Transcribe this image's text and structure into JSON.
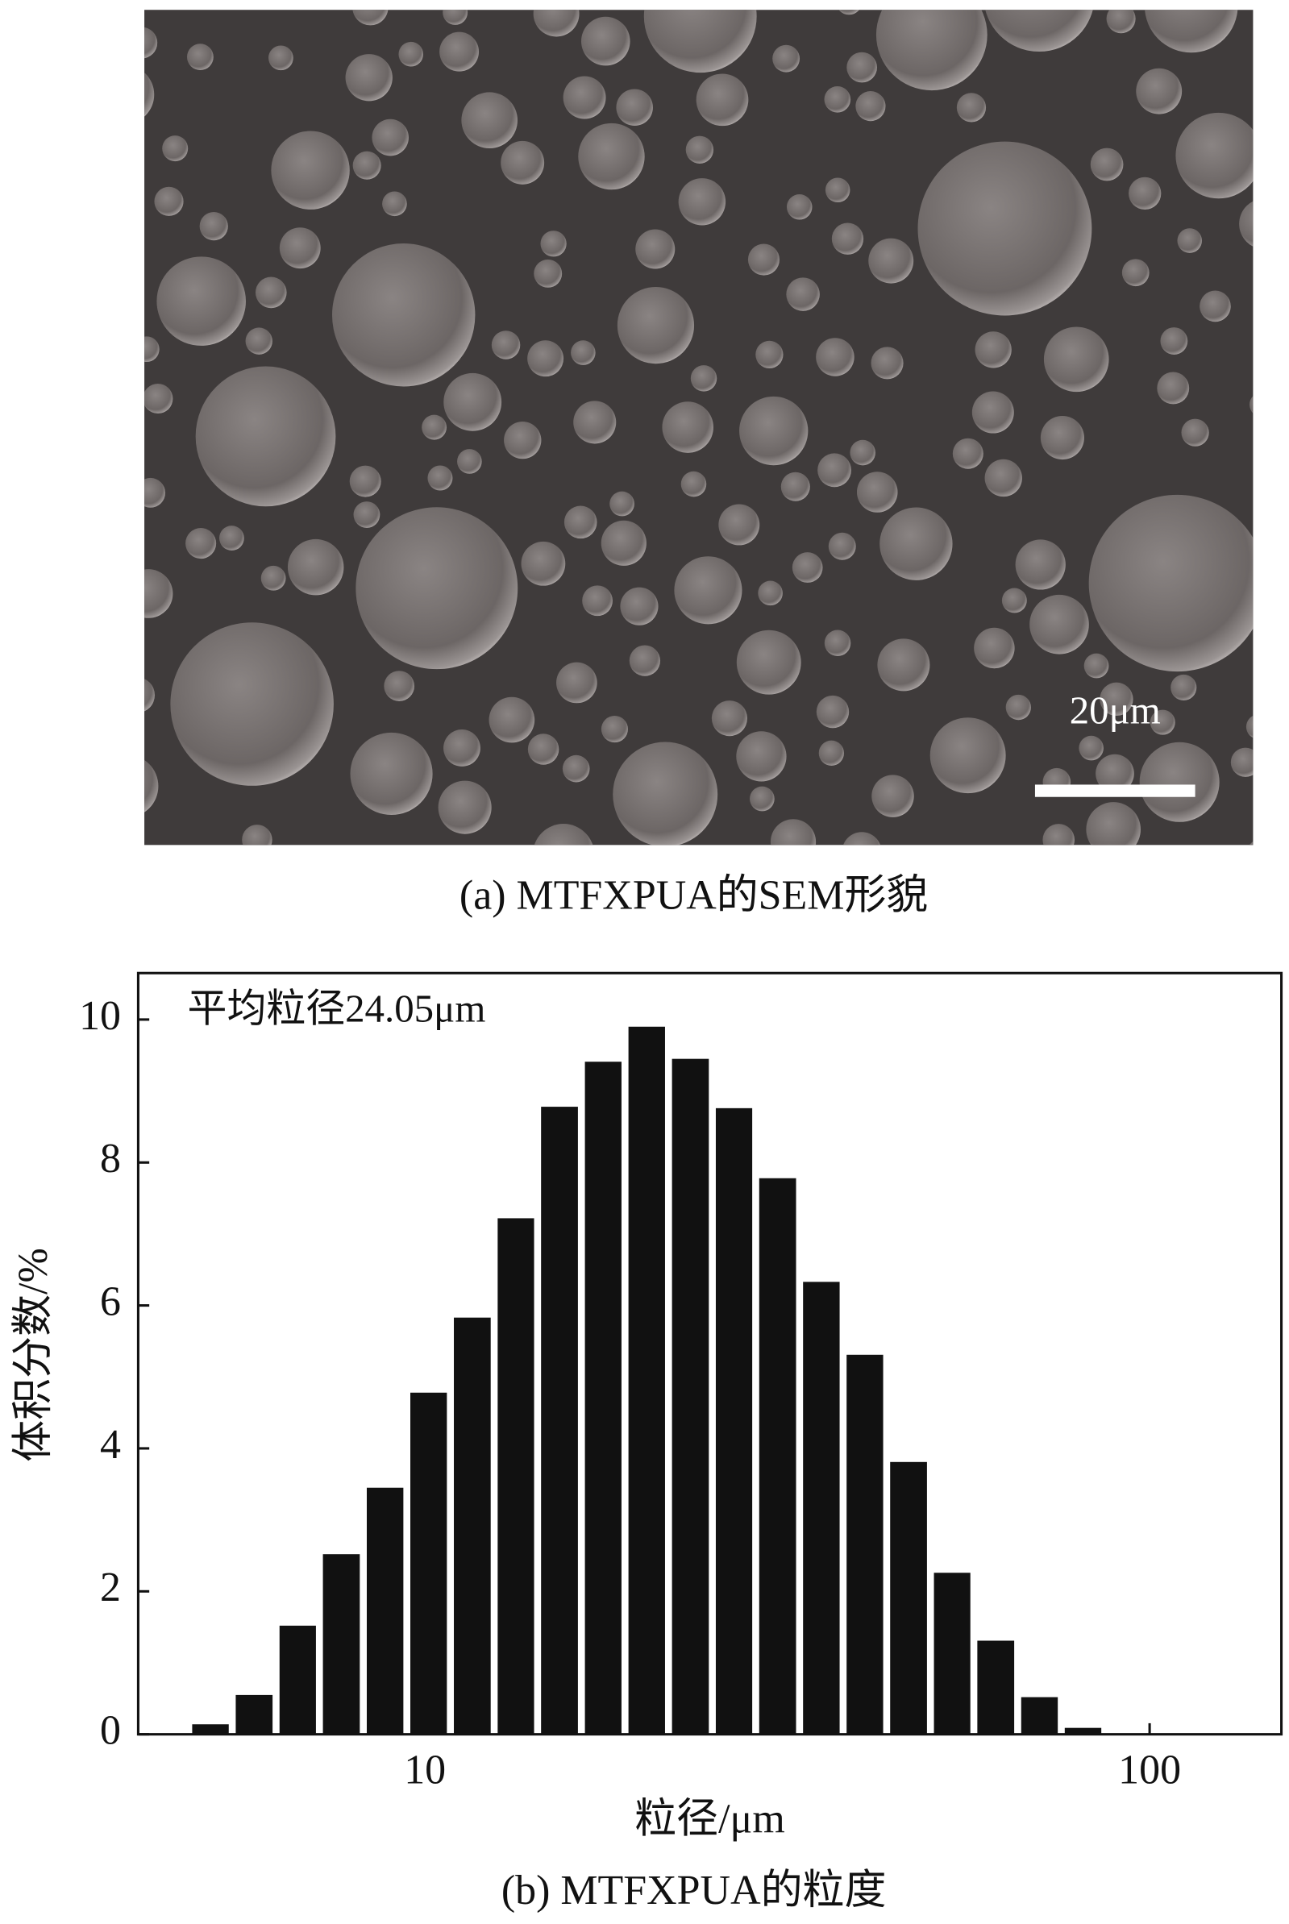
{
  "sem_image": {
    "scale_label": "20μm",
    "caption": "(a) MTFXPUA的SEM形貌"
  },
  "chart_data": {
    "type": "histogram",
    "caption": "(b) MTFXPUA的粒度",
    "annotation": "平均粒径24.05μm",
    "xlabel": "粒径/μm",
    "ylabel": "体积分数/%",
    "bins": [
      4.72,
      5.42,
      6.23,
      7.15,
      8.22,
      9.44,
      10.84,
      12.46,
      14.3,
      16.44,
      18.88,
      21.68,
      24.92,
      28.6,
      32.88,
      37.76,
      43.36,
      49.84,
      57.2,
      65.76,
      75.52,
      86.72
    ],
    "values": [
      0.14,
      0.55,
      1.52,
      2.52,
      3.45,
      4.78,
      5.83,
      7.22,
      8.78,
      9.41,
      9.9,
      9.45,
      8.76,
      7.78,
      6.33,
      5.31,
      3.81,
      2.26,
      1.31,
      0.52,
      0.09
    ],
    "color": "#111111",
    "xscale": "log",
    "xlim": [
      4.02,
      152
    ],
    "xticks": [
      10,
      100
    ],
    "ylim": [
      0,
      10.65
    ],
    "yticks": [
      0,
      2,
      4,
      6,
      8,
      10
    ]
  }
}
